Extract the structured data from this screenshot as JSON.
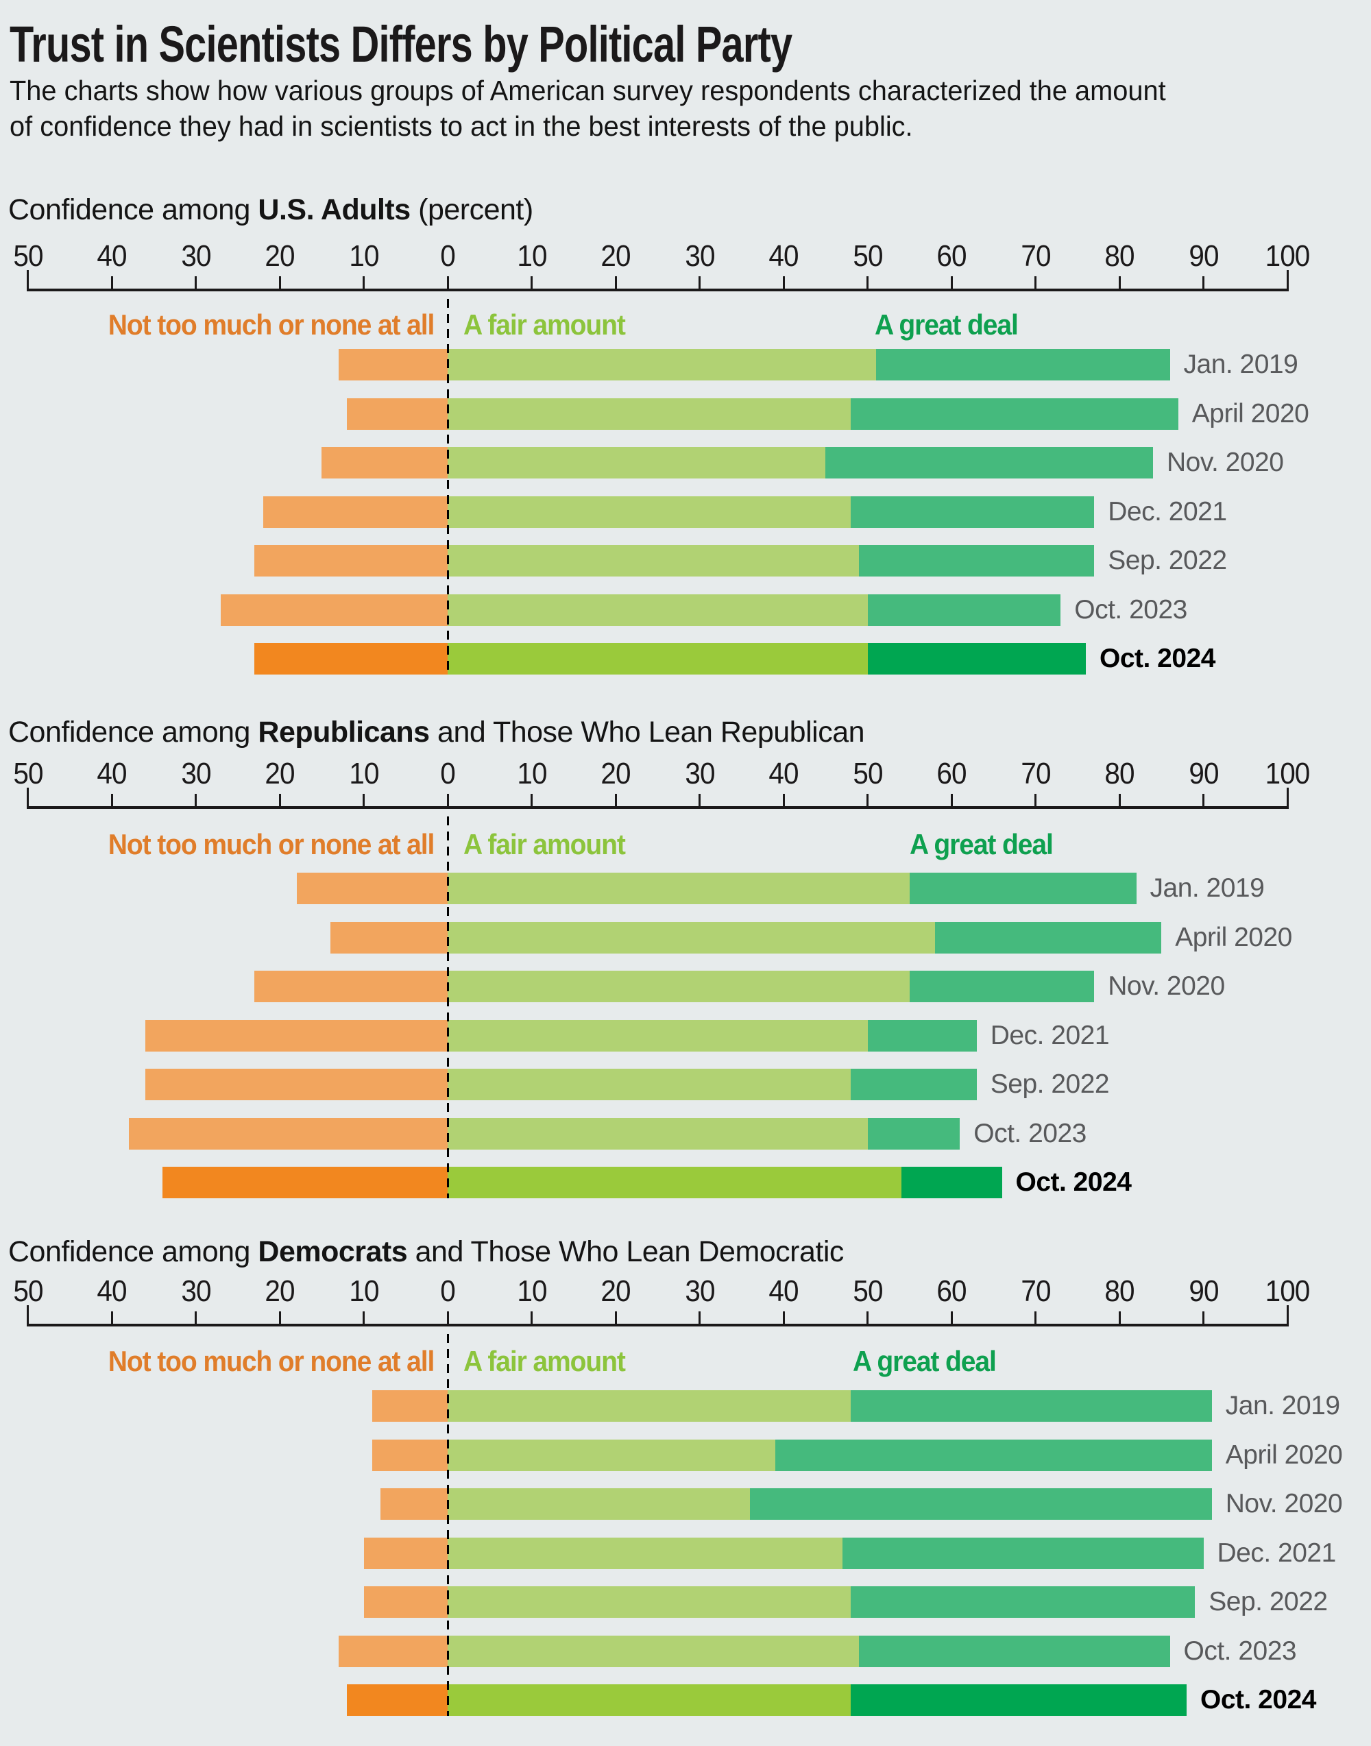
{
  "page": {
    "title": "Trust in Scientists Differs by Political Party",
    "subtitle_lines": [
      "The charts show how various groups of American survey respondents characterized the amount",
      "of confidence they had in scientists to act in the best interests of the public."
    ]
  },
  "legend": {
    "not": "Not too much or none at all",
    "fair": "A fair amount",
    "great": "A great deal"
  },
  "axis_ticks": [
    -50,
    -40,
    -30,
    -20,
    -10,
    0,
    10,
    20,
    30,
    40,
    50,
    60,
    70,
    80,
    90,
    100
  ],
  "colors": {
    "background": "#e7ebec",
    "not_muted": "#f2a55e",
    "not_strong": "#f2871f",
    "fair_muted": "#b1d273",
    "fair_strong": "#9aca3b",
    "great_muted": "#45ba7d",
    "great_strong": "#00a651",
    "legend_not_text": "#e07d2a",
    "legend_fair_text": "#8cc43c",
    "legend_great_text": "#0ea04f",
    "date_label": "#58595b",
    "current_label": "#000000",
    "axis": "#1b191a"
  },
  "chart_data": [
    {
      "type": "diverging_stacked_bar",
      "heading": {
        "prefix": "Confidence among ",
        "bold": "U.S. Adults",
        "suffix": " (percent)"
      },
      "xlabel": "percent",
      "axis_range": [
        -50,
        100
      ],
      "legend_position": "top",
      "series_names": [
        "Not too much or none at all",
        "A fair amount",
        "A great deal"
      ],
      "rows": [
        {
          "label": "Jan. 2019",
          "not_too_much": 13,
          "fair_amount": 51,
          "great_deal": 35,
          "current": false
        },
        {
          "label": "April 2020",
          "not_too_much": 12,
          "fair_amount": 48,
          "great_deal": 39,
          "current": false
        },
        {
          "label": "Nov. 2020",
          "not_too_much": 15,
          "fair_amount": 45,
          "great_deal": 39,
          "current": false
        },
        {
          "label": "Dec. 2021",
          "not_too_much": 22,
          "fair_amount": 48,
          "great_deal": 29,
          "current": false
        },
        {
          "label": "Sep. 2022",
          "not_too_much": 23,
          "fair_amount": 49,
          "great_deal": 28,
          "current": false
        },
        {
          "label": "Oct. 2023",
          "not_too_much": 27,
          "fair_amount": 50,
          "great_deal": 23,
          "current": false
        },
        {
          "label": "Oct. 2024",
          "not_too_much": 23,
          "fair_amount": 50,
          "great_deal": 26,
          "current": true
        }
      ]
    },
    {
      "type": "diverging_stacked_bar",
      "heading": {
        "prefix": "Confidence among ",
        "bold": "Republicans",
        "suffix": " and Those Who Lean Republican"
      },
      "axis_range": [
        -50,
        100
      ],
      "legend_position": "top",
      "series_names": [
        "Not too much or none at all",
        "A fair amount",
        "A great deal"
      ],
      "rows": [
        {
          "label": "Jan. 2019",
          "not_too_much": 18,
          "fair_amount": 55,
          "great_deal": 27,
          "current": false
        },
        {
          "label": "April 2020",
          "not_too_much": 14,
          "fair_amount": 58,
          "great_deal": 27,
          "current": false
        },
        {
          "label": "Nov. 2020",
          "not_too_much": 23,
          "fair_amount": 55,
          "great_deal": 22,
          "current": false
        },
        {
          "label": "Dec. 2021",
          "not_too_much": 36,
          "fair_amount": 50,
          "great_deal": 13,
          "current": false
        },
        {
          "label": "Sep. 2022",
          "not_too_much": 36,
          "fair_amount": 48,
          "great_deal": 15,
          "current": false
        },
        {
          "label": "Oct. 2023",
          "not_too_much": 38,
          "fair_amount": 50,
          "great_deal": 11,
          "current": false
        },
        {
          "label": "Oct. 2024",
          "not_too_much": 34,
          "fair_amount": 54,
          "great_deal": 12,
          "current": true
        }
      ]
    },
    {
      "type": "diverging_stacked_bar",
      "heading": {
        "prefix": "Confidence among ",
        "bold": "Democrats",
        "suffix": " and Those Who Lean Democratic"
      },
      "axis_range": [
        -50,
        100
      ],
      "legend_position": "top",
      "series_names": [
        "Not too much or none at all",
        "A fair amount",
        "A great deal"
      ],
      "rows": [
        {
          "label": "Jan. 2019",
          "not_too_much": 9,
          "fair_amount": 48,
          "great_deal": 43,
          "current": false
        },
        {
          "label": "April 2020",
          "not_too_much": 9,
          "fair_amount": 39,
          "great_deal": 52,
          "current": false
        },
        {
          "label": "Nov. 2020",
          "not_too_much": 8,
          "fair_amount": 36,
          "great_deal": 55,
          "current": false
        },
        {
          "label": "Dec. 2021",
          "not_too_much": 10,
          "fair_amount": 47,
          "great_deal": 43,
          "current": false
        },
        {
          "label": "Sep. 2022",
          "not_too_much": 10,
          "fair_amount": 48,
          "great_deal": 41,
          "current": false
        },
        {
          "label": "Oct. 2023",
          "not_too_much": 13,
          "fair_amount": 49,
          "great_deal": 37,
          "current": false
        },
        {
          "label": "Oct. 2024",
          "not_too_much": 12,
          "fair_amount": 48,
          "great_deal": 40,
          "current": true
        }
      ]
    }
  ]
}
